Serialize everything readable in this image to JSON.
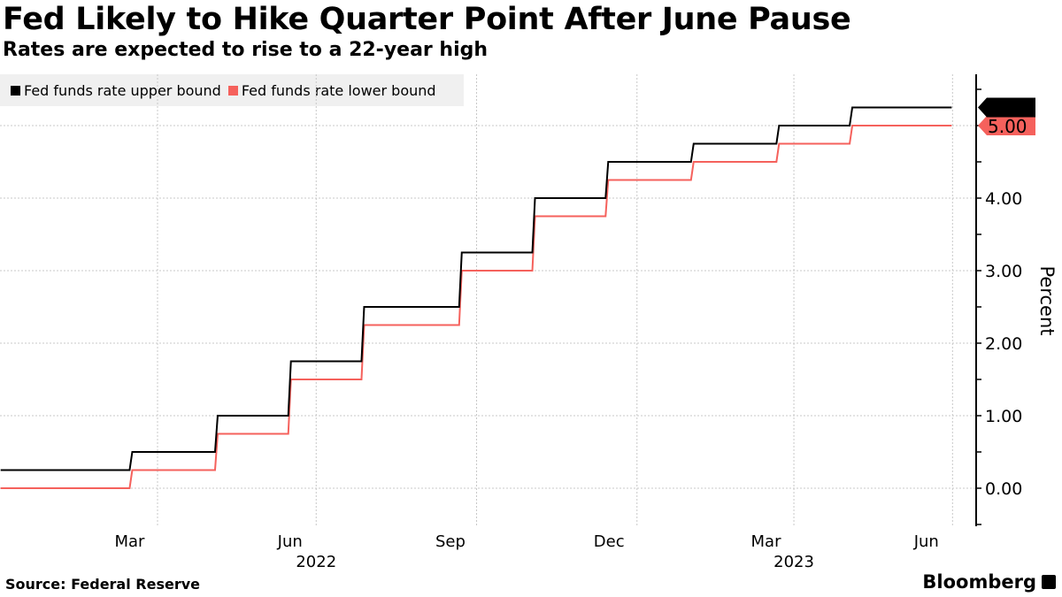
{
  "header": {
    "title": "Fed Likely to Hike Quarter Point After June Pause",
    "subtitle": "Rates are expected to rise to a 22-year high"
  },
  "footer": {
    "source": "Source: Federal Reserve",
    "brand": "Bloomberg"
  },
  "chart_data": {
    "type": "line",
    "title": "Fed Likely to Hike Quarter Point After June Pause",
    "subtitle": "Rates are expected to rise to a 22-year high",
    "ylabel": "Percent",
    "xlabel": "",
    "ylim": [
      -0.5,
      5.75
    ],
    "yticks": [
      0,
      1,
      2,
      3,
      4,
      5
    ],
    "ytick_labels": [
      "0.00",
      "1.00",
      "2.00",
      "3.00",
      "4.00",
      "5.00"
    ],
    "xlim": [
      "2022-01-01",
      "2023-06-30"
    ],
    "xtick_labels": [
      {
        "label": "Mar",
        "date": "2022-03-16"
      },
      {
        "label": "Jun",
        "date": "2022-06-16"
      },
      {
        "label": "Sep",
        "date": "2022-09-16"
      },
      {
        "label": "Dec",
        "date": "2022-12-16"
      },
      {
        "label": "Mar",
        "date": "2023-03-16"
      },
      {
        "label": "Jun",
        "date": "2023-06-16"
      }
    ],
    "year_labels": [
      {
        "label": "2022",
        "date": "2022-07-01"
      },
      {
        "label": "2023",
        "date": "2023-04-01"
      }
    ],
    "grid": true,
    "legend_position": "top-left",
    "step_dates": [
      "2022-01-01",
      "2022-03-17",
      "2022-05-05",
      "2022-06-16",
      "2022-07-28",
      "2022-09-22",
      "2022-11-03",
      "2022-12-15",
      "2023-02-02",
      "2023-03-23",
      "2023-05-04",
      "2023-06-30"
    ],
    "series": [
      {
        "name": "Fed funds rate upper bound",
        "color": "#000000",
        "values": [
          0.25,
          0.5,
          1.0,
          1.75,
          2.5,
          3.25,
          4.0,
          4.5,
          4.75,
          5.0,
          5.25,
          5.25
        ],
        "last_label": "5.25"
      },
      {
        "name": "Fed funds rate lower bound",
        "color": "#f5615c",
        "values": [
          0,
          0.25,
          0.75,
          1.5,
          2.25,
          3.0,
          3.75,
          4.25,
          4.5,
          4.75,
          5.0,
          5.0
        ],
        "last_label": "5.00"
      }
    ]
  }
}
